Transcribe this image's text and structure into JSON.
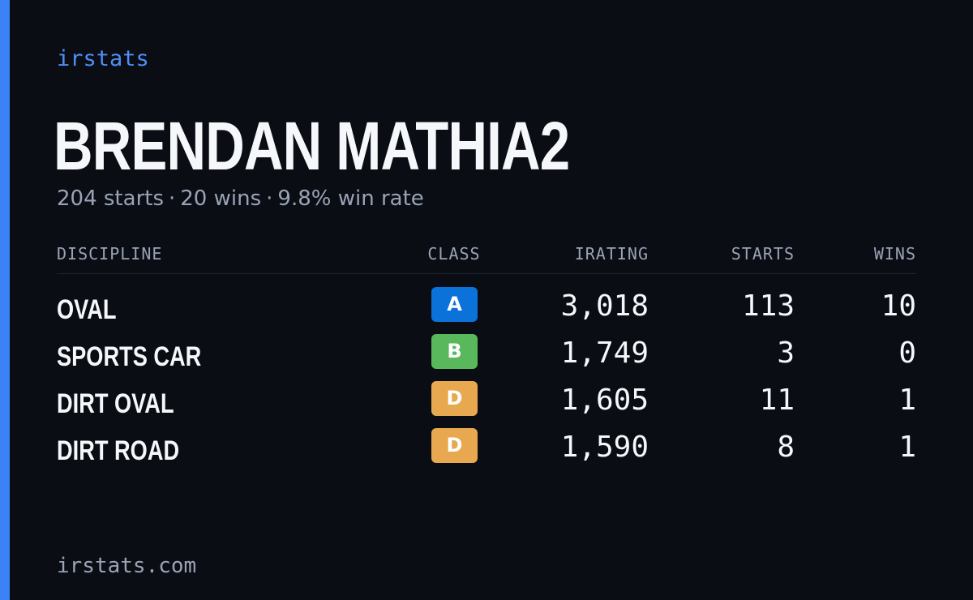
{
  "brand": "irstats",
  "player": {
    "name": "BRENDAN MATHIA2",
    "starts_text": "204 starts",
    "wins_text": "20 wins",
    "win_rate_text": "9.8% win rate",
    "separator": "·"
  },
  "table": {
    "headers": {
      "discipline": "DISCIPLINE",
      "class": "CLASS",
      "irating": "IRATING",
      "starts": "STARTS",
      "wins": "WINS"
    },
    "rows": [
      {
        "discipline": "OVAL",
        "class": "A",
        "class_color": "#0b72d9",
        "irating": "3,018",
        "starts": "113",
        "wins": "10"
      },
      {
        "discipline": "SPORTS CAR",
        "class": "B",
        "class_color": "#5ab85c",
        "irating": "1,749",
        "starts": "3",
        "wins": "0"
      },
      {
        "discipline": "DIRT OVAL",
        "class": "D",
        "class_color": "#e8a84f",
        "irating": "1,605",
        "starts": "11",
        "wins": "1"
      },
      {
        "discipline": "DIRT ROAD",
        "class": "D",
        "class_color": "#e8a84f",
        "irating": "1,590",
        "starts": "8",
        "wins": "1"
      }
    ]
  },
  "footer": "irstats.com",
  "colors": {
    "accent": "#3b82f6",
    "background": "#0a0d14"
  }
}
